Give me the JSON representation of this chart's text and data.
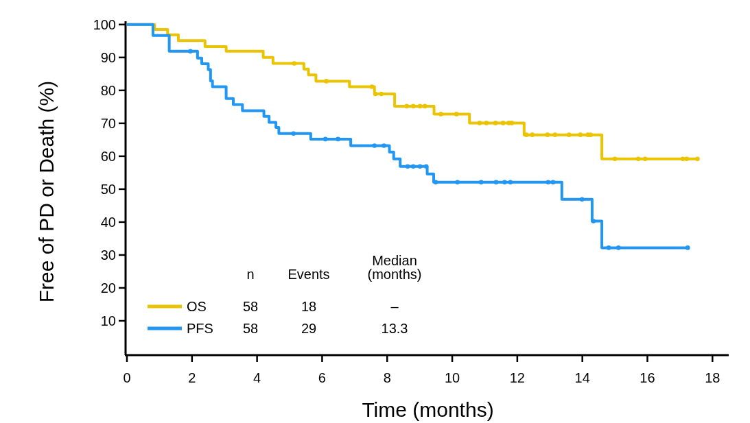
{
  "chart_data": {
    "type": "step",
    "xlabel": "Time (months)",
    "ylabel": "Free of PD or Death (%)",
    "xlim": [
      0,
      18.5
    ],
    "xticks": [
      0,
      2,
      4,
      6,
      8,
      10,
      12,
      14,
      16,
      18
    ],
    "ylim": [
      0,
      101
    ],
    "yticks": [
      10,
      20,
      30,
      40,
      50,
      60,
      70,
      80,
      90,
      100
    ],
    "grid": false,
    "legend": "bottom left",
    "series": [
      {
        "name": "OS",
        "color": "#eac400",
        "x": [
          0,
          0.85,
          1.25,
          1.58,
          2.4,
          3.05,
          4.19,
          4.49,
          5.44,
          5.58,
          5.81,
          6.84,
          7.61,
          8.23,
          9.44,
          10.53,
          12.21,
          14.6,
          17.54
        ],
        "values": [
          100,
          98.5,
          96.9,
          95.1,
          93.3,
          91.9,
          90,
          88.2,
          86.5,
          84.7,
          82.8,
          81.1,
          78.9,
          75.2,
          72.8,
          70.1,
          66.5,
          59.2,
          59.2
        ]
      },
      {
        "name": "PFS",
        "color": "#2196f3",
        "x": [
          0,
          0.8,
          1.3,
          2.17,
          2.3,
          2.5,
          2.57,
          2.63,
          3.05,
          3.27,
          3.55,
          4.21,
          4.37,
          4.58,
          4.67,
          5.65,
          6.88,
          8.07,
          8.2,
          8.4,
          9.23,
          9.43,
          13.37,
          14.3,
          14.6,
          17.24
        ],
        "values": [
          100,
          96.7,
          91.9,
          89.8,
          88.1,
          86.3,
          82.9,
          81.1,
          77.5,
          75.7,
          73.8,
          72.1,
          70.3,
          68.7,
          66.9,
          65.2,
          63.2,
          61.3,
          59.2,
          56.9,
          54.6,
          52.1,
          46.9,
          40.3,
          32.2,
          32.2
        ]
      },
      {
        "type": "scatter",
        "marker": "circle",
        "color": "#eac400",
        "x": [
          5.14,
          6.13,
          7.53,
          7.64,
          7.82,
          8.6,
          8.8,
          9.01,
          9.16,
          9.65,
          10.13,
          10.84,
          11.05,
          11.33,
          11.56,
          11.74,
          11.83,
          12.28,
          12.46,
          12.93,
          13.16,
          13.59,
          13.94,
          14.17,
          14.25,
          15.0,
          15.72,
          15.93,
          17.09,
          17.21,
          17.54
        ],
        "values": [
          88.2,
          82.8,
          81.1,
          78.9,
          78.9,
          75.2,
          75.2,
          75.2,
          75.2,
          72.8,
          72.8,
          70.1,
          70.1,
          70.1,
          70.1,
          70.1,
          70.1,
          66.5,
          66.5,
          66.5,
          66.5,
          66.5,
          66.5,
          66.5,
          66.5,
          59.2,
          59.2,
          59.2,
          59.2,
          59.2,
          59.2
        ]
      },
      {
        "type": "scatter",
        "marker": "circle",
        "color": "#2196f3",
        "x": [
          1.95,
          5.12,
          6.1,
          6.49,
          7.61,
          7.9,
          8.63,
          8.8,
          9.01,
          9.2,
          9.49,
          10.16,
          10.89,
          11.35,
          11.61,
          11.79,
          12.95,
          13.1,
          13.99,
          14.34,
          14.81,
          15.11,
          17.24
        ],
        "values": [
          91.9,
          66.9,
          65.2,
          65.2,
          63.2,
          63.2,
          56.9,
          56.9,
          56.9,
          56.9,
          52.1,
          52.1,
          52.1,
          52.1,
          52.1,
          52.1,
          52.1,
          52.1,
          46.9,
          40.3,
          32.2,
          32.2,
          32.2
        ]
      }
    ],
    "annotations": [
      "n",
      "Events",
      "Median\n(months)",
      "58",
      "18",
      "–",
      "58",
      "29",
      "13.3"
    ]
  }
}
